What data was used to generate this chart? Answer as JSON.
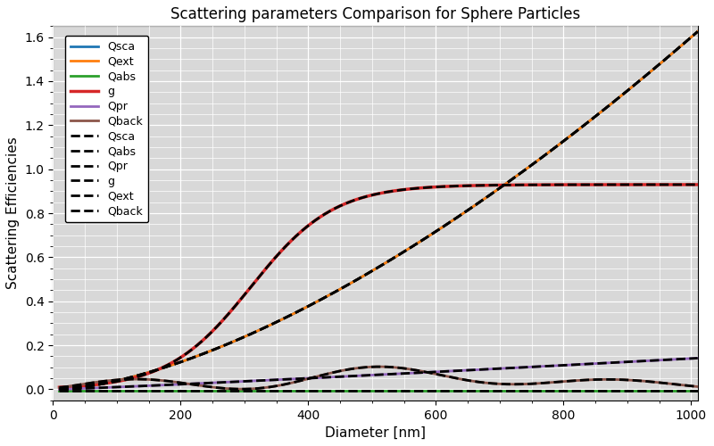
{
  "title": "Scattering parameters Comparison for Sphere Particles",
  "xlabel": "Diameter [nm]",
  "ylabel": "Scattering Efficiencies",
  "x_min": 10,
  "x_max": 1010,
  "y_min": -0.05,
  "y_max": 1.65,
  "background_color": "#d8d8d8",
  "grid_color": "#ffffff",
  "solid_lines": [
    {
      "label": "Qsca",
      "color": "#1f77b4",
      "lw": 2.0
    },
    {
      "label": "Qext",
      "color": "#ff7f0e",
      "lw": 2.0
    },
    {
      "label": "Qabs",
      "color": "#2ca02c",
      "lw": 2.0
    },
    {
      "label": "g",
      "color": "#d62728",
      "lw": 2.5
    },
    {
      "label": "Qpr",
      "color": "#9467bd",
      "lw": 2.0
    },
    {
      "label": "Qback",
      "color": "#8c564b",
      "lw": 2.0
    }
  ],
  "dashed_labels": [
    "Qsca",
    "Qabs",
    "Qpr",
    "g",
    "Qext",
    "Qback"
  ],
  "xticks": [
    0,
    200,
    400,
    600,
    800,
    1000
  ],
  "yticks": [
    0.0,
    0.2,
    0.4,
    0.6,
    0.8,
    1.0,
    1.2,
    1.4,
    1.6
  ],
  "legend_fontsize": 9,
  "title_fontsize": 12,
  "axis_fontsize": 11
}
